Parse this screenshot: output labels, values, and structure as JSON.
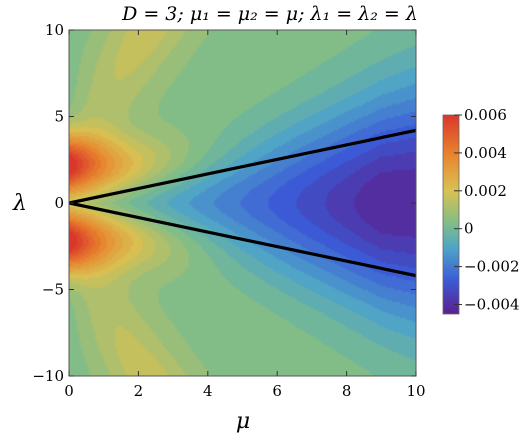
{
  "chart_data": {
    "type": "heatmap",
    "title": "D = 3;  μ₁ = μ₂ = μ;   λ₁ = λ₂ = λ",
    "xlabel": "μ",
    "ylabel": "λ",
    "xlim": [
      0,
      10
    ],
    "ylim": [
      -10,
      10
    ],
    "x_ticks": [
      0,
      2,
      4,
      6,
      8,
      10
    ],
    "y_ticks": [
      -10,
      -5,
      0,
      5,
      10
    ],
    "y_tick_labels": [
      "−10",
      "−5",
      "0",
      "5",
      "10"
    ],
    "colorbar": {
      "range": [
        -0.0045,
        0.006
      ],
      "ticks": [
        0.006,
        0.004,
        0.002,
        0,
        -0.002,
        -0.004
      ],
      "tick_labels": [
        "0.006",
        "0.004",
        "0.002",
        "0",
        "−0.002",
        "−0.004"
      ],
      "palette": "rainbow",
      "colors": [
        "#5b1f8f",
        "#3b5bd6",
        "#4fa3c8",
        "#7dbd8a",
        "#d9c152",
        "#e8852e",
        "#d9372b"
      ]
    },
    "field_features": {
      "max_value": 0.006,
      "max_locations": [
        [
          0,
          2.2
        ],
        [
          0,
          -2.2
        ]
      ],
      "min_value": -0.0045,
      "min_location": [
        10,
        0
      ]
    },
    "overlay_lines": [
      {
        "points": [
          [
            0,
            0
          ],
          [
            10,
            4.2
          ]
        ],
        "color": "#000000"
      },
      {
        "points": [
          [
            0,
            0
          ],
          [
            10,
            -4.2
          ]
        ],
        "color": "#000000"
      }
    ]
  }
}
